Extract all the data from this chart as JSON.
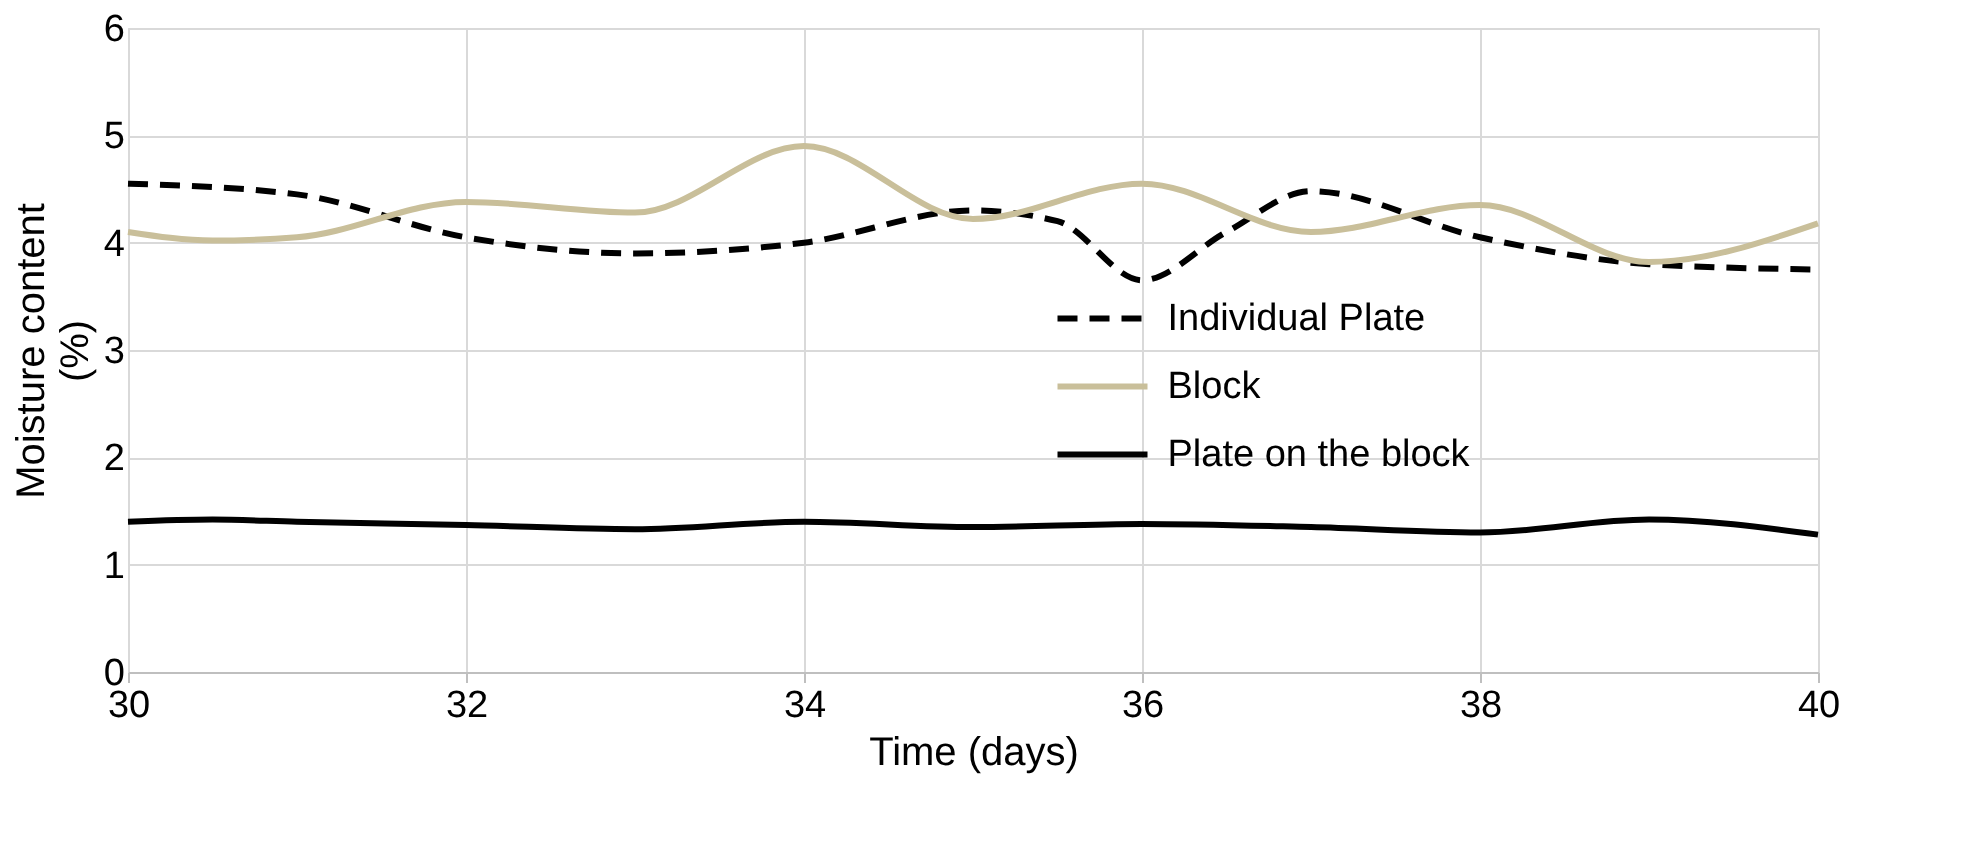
{
  "chart_data": {
    "type": "line",
    "xlabel": "Time (days)",
    "ylabel": "Moisture content (%)",
    "xlim": [
      30,
      40
    ],
    "xticks": [
      30,
      32,
      34,
      36,
      38,
      40
    ],
    "ylim": [
      0,
      6
    ],
    "yticks": [
      0,
      1,
      2,
      3,
      4,
      5,
      6
    ],
    "grid": true,
    "legend": "right",
    "marker": "none",
    "series": [
      {
        "name": "Individual Plate",
        "color": "#000000",
        "line_style": "dashed",
        "x": [
          30,
          31,
          32,
          33,
          34,
          35,
          35.5,
          36,
          36.5,
          37,
          38,
          39,
          40
        ],
        "values": [
          4.55,
          4.45,
          4.05,
          3.9,
          4.0,
          4.3,
          4.2,
          3.65,
          4.1,
          4.48,
          4.05,
          3.8,
          3.75
        ]
      },
      {
        "name": "Block",
        "color": "#c9bf9a",
        "line_style": "solid",
        "x": [
          30,
          30.5,
          31,
          32,
          33,
          34,
          35,
          36,
          37,
          38,
          39,
          40
        ],
        "values": [
          4.1,
          4.02,
          4.05,
          4.38,
          4.28,
          4.9,
          4.22,
          4.55,
          4.1,
          4.35,
          3.82,
          4.18
        ]
      },
      {
        "name": "Plate on the block",
        "color": "#000000",
        "line_style": "solid",
        "x": [
          30,
          30.5,
          31,
          32,
          33,
          34,
          35,
          36,
          37,
          38,
          39,
          40
        ],
        "values": [
          1.4,
          1.42,
          1.4,
          1.37,
          1.33,
          1.4,
          1.35,
          1.38,
          1.35,
          1.3,
          1.42,
          1.28
        ]
      }
    ]
  }
}
